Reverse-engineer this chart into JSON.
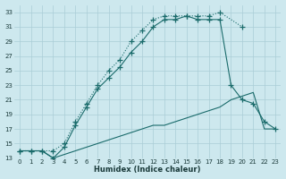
{
  "xlabel": "Humidex (Indice chaleur)",
  "bg_color": "#cde8ee",
  "grid_color": "#aacdd6",
  "line_color": "#1a6b6b",
  "xlim": [
    -0.5,
    23.5
  ],
  "ylim": [
    13,
    34
  ],
  "xticks": [
    0,
    1,
    2,
    3,
    4,
    5,
    6,
    7,
    8,
    9,
    10,
    11,
    12,
    13,
    14,
    15,
    16,
    17,
    18,
    19,
    20,
    21,
    22,
    23
  ],
  "yticks": [
    13,
    15,
    17,
    19,
    21,
    23,
    25,
    27,
    29,
    31,
    33
  ],
  "line1_x": [
    0,
    1,
    2,
    3,
    4,
    5,
    6,
    7,
    8,
    9,
    10,
    11,
    12,
    13,
    14,
    15,
    16,
    17,
    18,
    20
  ],
  "line1_y": [
    14,
    14,
    14,
    14,
    15,
    18,
    20.5,
    23,
    25,
    26.5,
    29,
    30.5,
    32,
    32.5,
    32.5,
    32.5,
    32.5,
    32.5,
    33,
    31
  ],
  "line2_x": [
    0,
    1,
    2,
    3,
    4,
    5,
    6,
    7,
    8,
    9,
    10,
    11,
    12,
    13,
    14,
    15,
    16,
    17,
    18,
    19,
    20,
    21,
    22,
    23
  ],
  "line2_y": [
    14,
    14,
    14,
    13,
    14.5,
    17.5,
    20,
    22.5,
    24,
    25.5,
    27.5,
    29,
    31,
    32,
    32,
    32.5,
    32,
    32,
    32,
    23,
    21,
    20.5,
    18,
    17
  ],
  "line3_x": [
    0,
    1,
    2,
    3,
    4,
    5,
    6,
    7,
    8,
    9,
    10,
    11,
    12,
    13,
    14,
    15,
    16,
    17,
    18,
    19,
    20,
    21,
    22,
    23
  ],
  "line3_y": [
    14,
    14,
    14,
    13,
    13.5,
    14,
    14.5,
    15,
    15.5,
    16,
    16.5,
    17,
    17.5,
    17.5,
    18,
    18.5,
    19,
    19.5,
    20,
    21,
    21.5,
    22,
    17,
    17
  ]
}
